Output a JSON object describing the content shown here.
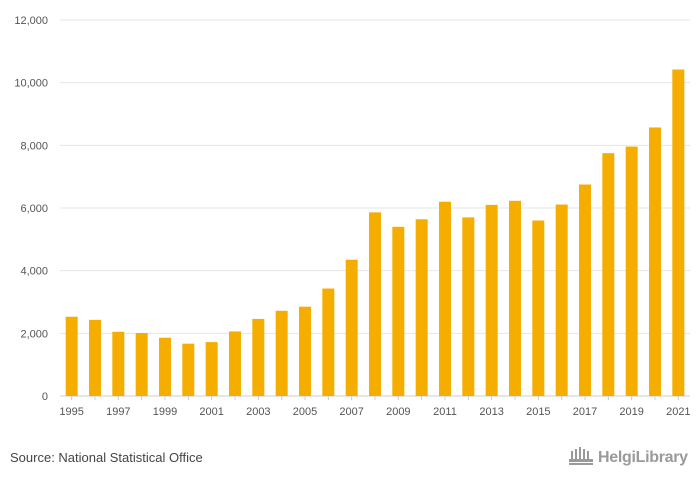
{
  "chart_data": {
    "type": "bar",
    "title": "",
    "xlabel": "",
    "ylabel": "",
    "ylim": [
      0,
      12000
    ],
    "yticks": [
      0,
      2000,
      4000,
      6000,
      8000,
      10000,
      12000
    ],
    "ytick_labels": [
      "0",
      "2,000",
      "4,000",
      "6,000",
      "8,000",
      "10,000",
      "12,000"
    ],
    "categories": [
      "1995",
      "1996",
      "1997",
      "1998",
      "1999",
      "2000",
      "2001",
      "2002",
      "2003",
      "2004",
      "2005",
      "2006",
      "2007",
      "2008",
      "2009",
      "2010",
      "2011",
      "2012",
      "2013",
      "2014",
      "2015",
      "2016",
      "2017",
      "2018",
      "2019",
      "2020",
      "2021"
    ],
    "xtick_labels": [
      "1995",
      "1997",
      "1999",
      "2001",
      "2003",
      "2005",
      "2007",
      "2009",
      "2011",
      "2013",
      "2015",
      "2017",
      "2019",
      "2021"
    ],
    "values": [
      2530,
      2430,
      2050,
      2010,
      1860,
      1670,
      1720,
      2060,
      2460,
      2720,
      2850,
      3430,
      4350,
      5860,
      5400,
      5640,
      6200,
      5700,
      6100,
      6230,
      5600,
      6110,
      6750,
      7750,
      7960,
      8570,
      10420
    ],
    "bar_color": "#f5ad00",
    "grid": true
  },
  "footer": {
    "source": "Source: National Statistical Office",
    "logo_text": "HelgiLibrary",
    "logo_icon": "helgi-library-icon"
  }
}
